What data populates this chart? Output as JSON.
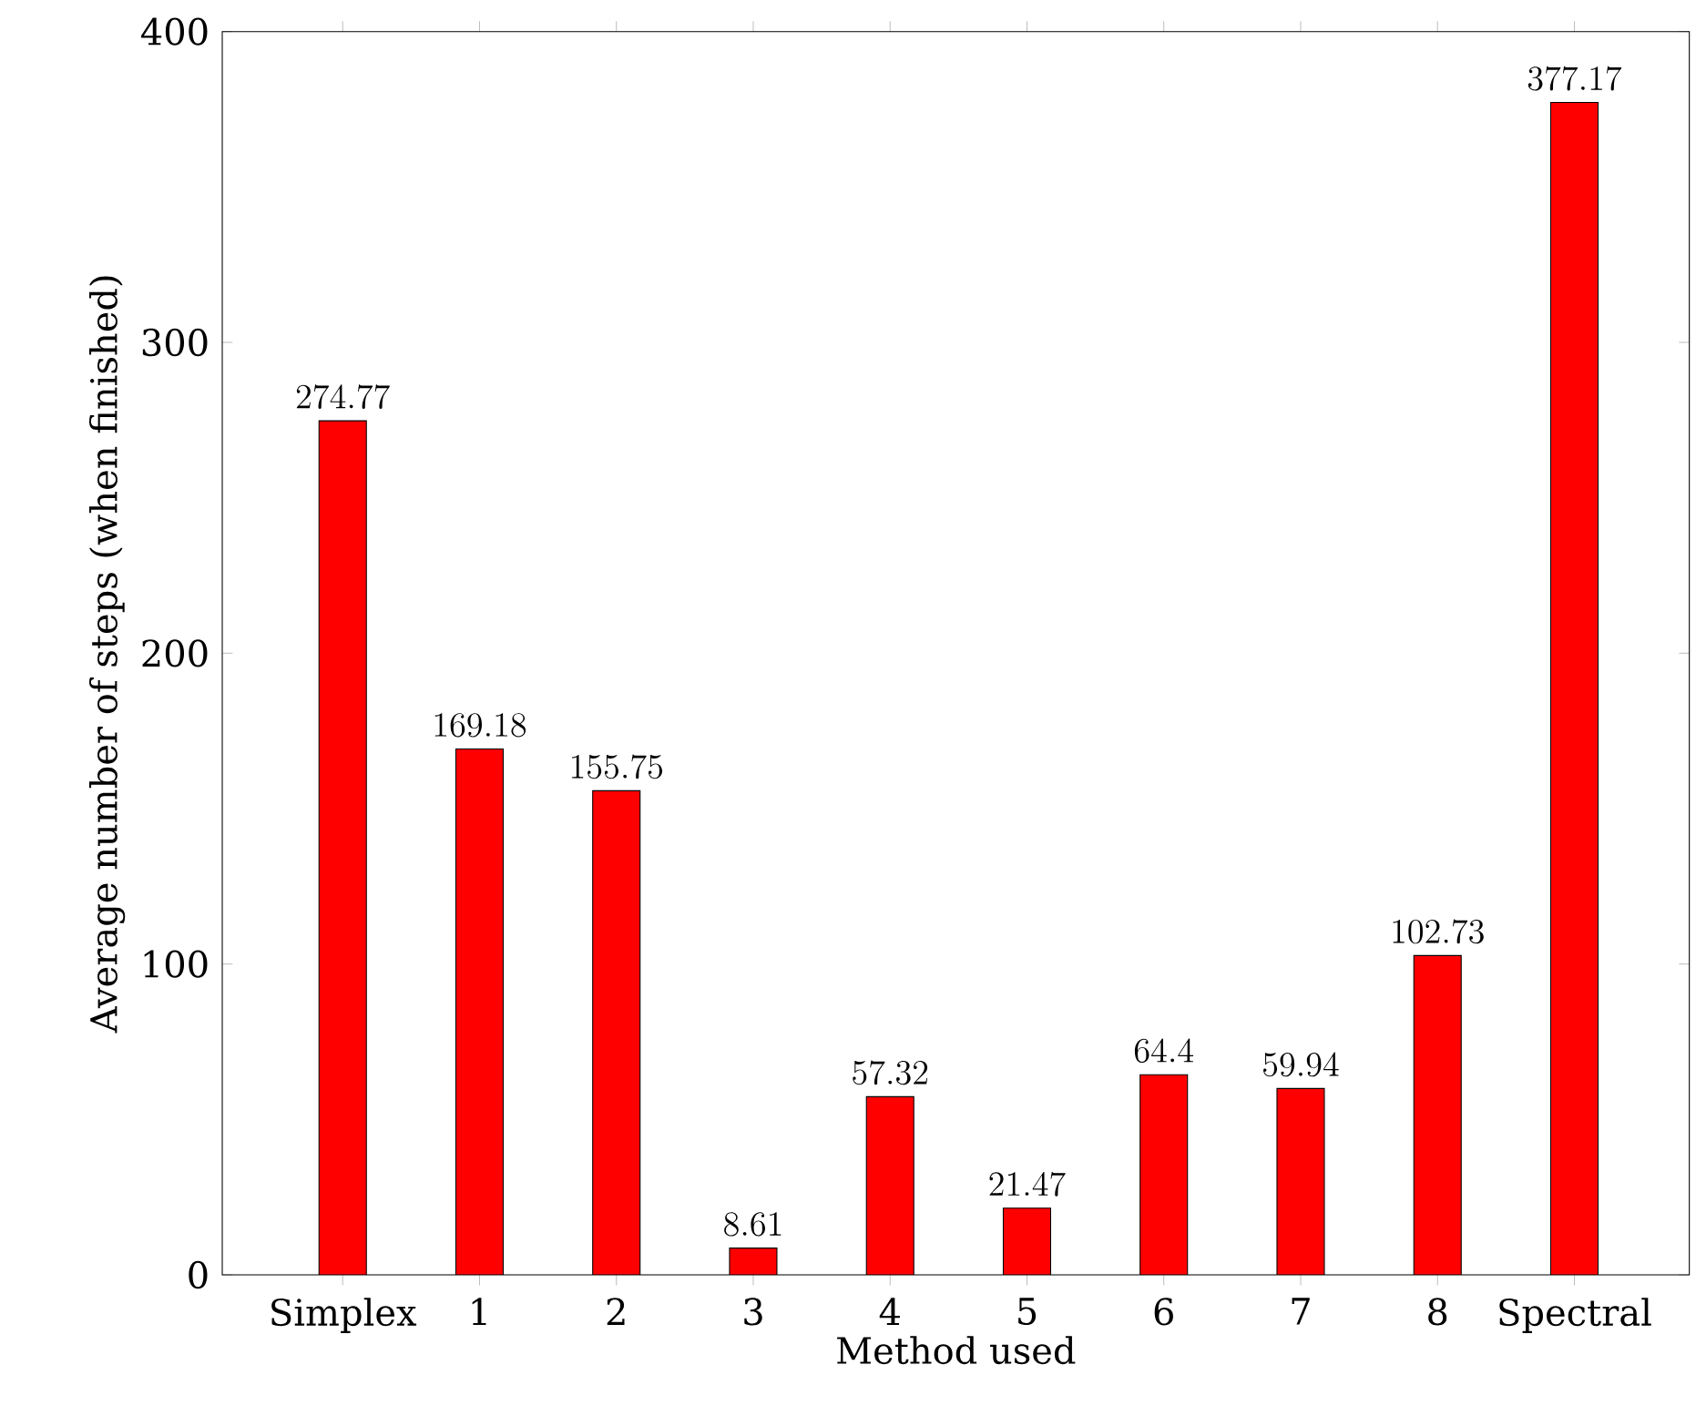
{
  "chart_data": {
    "type": "bar",
    "xlabel": "Method used",
    "ylabel": "Average number of steps (when finished)",
    "categories": [
      "Simplex",
      "1",
      "2",
      "3",
      "4",
      "5",
      "6",
      "7",
      "8",
      "Spectral"
    ],
    "values": [
      274.77,
      169.18,
      155.75,
      8.61,
      57.32,
      21.47,
      64.4,
      59.94,
      102.73,
      377.17
    ],
    "color": "#ff0000",
    "ylim": [
      0,
      400
    ],
    "yticks": [
      0,
      100,
      200,
      300,
      400
    ],
    "data_labels": true,
    "grid": false
  }
}
